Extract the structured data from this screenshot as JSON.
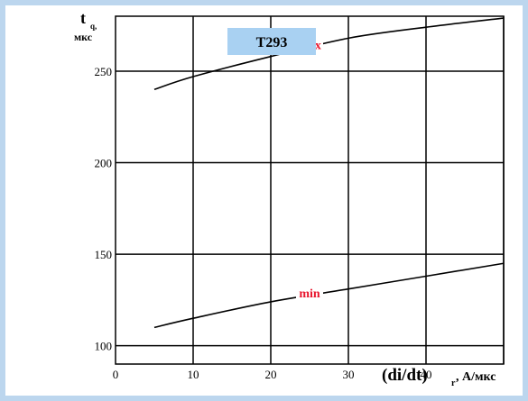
{
  "chart_data": {
    "type": "line",
    "title": "T293",
    "ylabel": {
      "main": "t",
      "sub": "q,",
      "unit": "мкс"
    },
    "xlabel": {
      "main": "(di/dt)",
      "sub": "r",
      "unit": ", А/мкс"
    },
    "xlim": [
      0,
      50
    ],
    "ylim": [
      90,
      280
    ],
    "x_ticks": [
      0,
      10,
      20,
      30,
      40
    ],
    "y_ticks": [
      100,
      150,
      200,
      250
    ],
    "grid": true,
    "series": [
      {
        "name": "max",
        "x": [
          5,
          10,
          20,
          30,
          40,
          50
        ],
        "y": [
          240,
          247,
          258,
          268,
          274,
          279
        ]
      },
      {
        "name": "min",
        "x": [
          5,
          10,
          20,
          30,
          40,
          50
        ],
        "y": [
          110,
          115,
          124,
          131,
          138,
          145
        ]
      }
    ]
  },
  "colors": {
    "frame": "#bcd6ee",
    "title_box": "#a9d1f2",
    "series_label": "#e8162e"
  }
}
